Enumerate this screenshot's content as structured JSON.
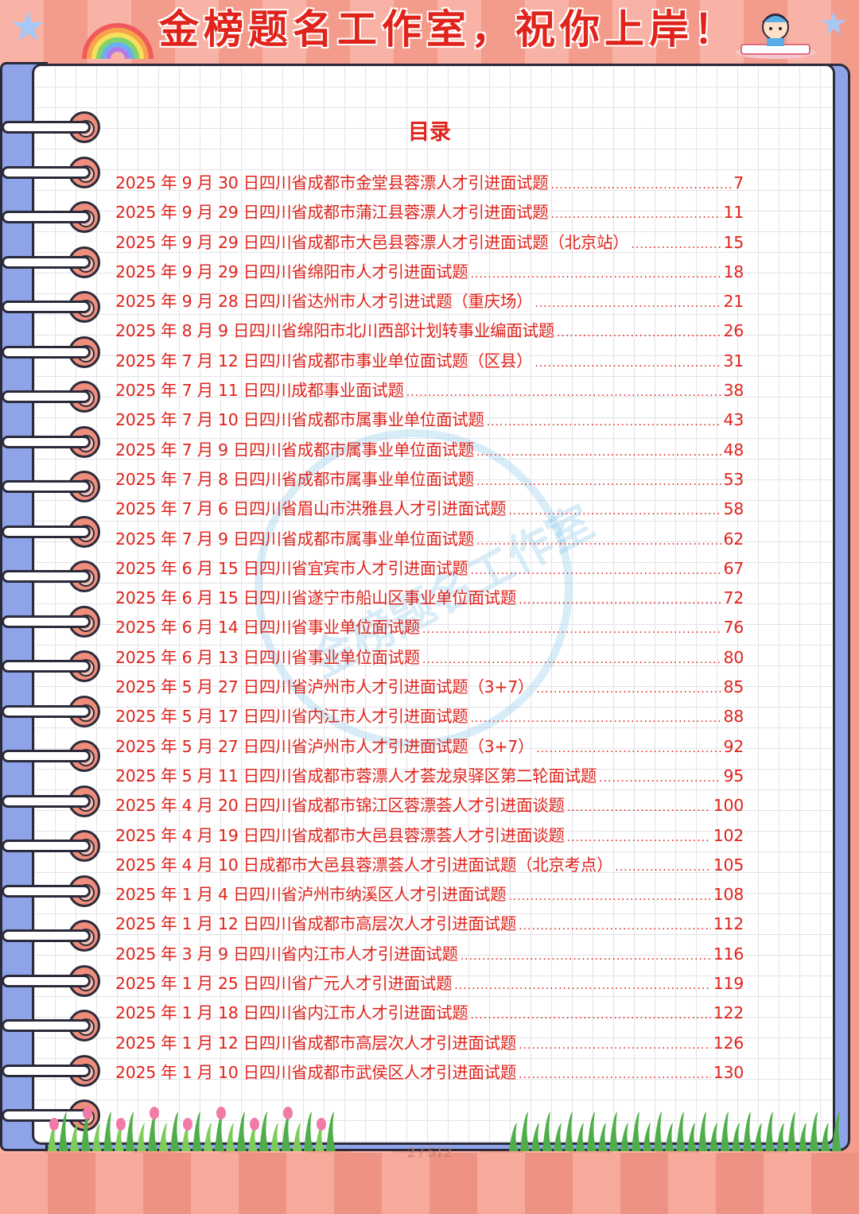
{
  "banner": {
    "title": "金榜题名工作室，祝你上岸！"
  },
  "watermark": {
    "text": "金榜题名工作室"
  },
  "toc": {
    "heading": "目录",
    "entries": [
      {
        "title": "2025 年 9 月 30 日四川省成都市金堂县蓉漂人才引进面试题",
        "page": "7"
      },
      {
        "title": "2025 年 9 月 29 日四川省成都市蒲江县蓉漂人才引进面试题",
        "page": "11"
      },
      {
        "title": "2025 年 9 月 29 日四川省成都市大邑县蓉漂人才引进面试题（北京站）",
        "page": "15"
      },
      {
        "title": "2025 年 9 月 29 日四川省绵阳市人才引进面试题",
        "page": "18"
      },
      {
        "title": "2025 年 9 月 28 日四川省达州市人才引进试题（重庆场）",
        "page": "21"
      },
      {
        "title": "2025 年 8 月 9 日四川省绵阳市北川西部计划转事业编面试题",
        "page": "26"
      },
      {
        "title": "2025 年 7 月 12 日四川省成都市事业单位面试题（区县）",
        "page": "31"
      },
      {
        "title": "2025 年 7 月 11 日四川成都事业面试题",
        "page": "38"
      },
      {
        "title": "2025 年 7 月 10 日四川省成都市属事业单位面试题",
        "page": "43"
      },
      {
        "title": "2025 年 7 月 9 日四川省成都市属事业单位面试题",
        "page": "48"
      },
      {
        "title": "2025 年 7 月 8 日四川省成都市属事业单位面试题",
        "page": "53"
      },
      {
        "title": "2025 年 7 月 6 日四川省眉山市洪雅县人才引进面试题",
        "page": "58"
      },
      {
        "title": "2025 年 7 月 9 日四川省成都市属事业单位面试题",
        "page": "62"
      },
      {
        "title": "2025 年 6 月 15 日四川省宜宾市人才引进面试题",
        "page": "67"
      },
      {
        "title": "2025 年 6 月 15 日四川省遂宁市船山区事业单位面试题",
        "page": "72"
      },
      {
        "title": "2025 年 6 月 14 日四川省事业单位面试题",
        "page": "76"
      },
      {
        "title": "2025 年 6 月 13 日四川省事业单位面试题",
        "page": "80"
      },
      {
        "title": "2025 年 5 月 27 日四川省泸州市人才引进面试题（3+7）",
        "page": "85"
      },
      {
        "title": "2025 年 5 月 17 日四川省内江市人才引进面试题",
        "page": "88"
      },
      {
        "title": "2025 年 5 月 27 日四川省泸州市人才引进面试题（3+7）",
        "page": "92"
      },
      {
        "title": "2025 年 5 月 11 日四川省成都市蓉漂人才荟龙泉驿区第二轮面试题",
        "page": "95"
      },
      {
        "title": "2025 年 4 月 20 日四川省成都市锦江区蓉漂荟人才引进面谈题",
        "page": "100"
      },
      {
        "title": "2025 年 4 月 19 日四川省成都市大邑县蓉漂荟人才引进面谈题",
        "page": "102"
      },
      {
        "title": "2025 年 4 月 10 日成都市大邑县蓉漂荟人才引进面试题（北京考点）",
        "page": "105"
      },
      {
        "title": "2025 年 1 月 4 日四川省泸州市纳溪区人才引进面试题",
        "page": "108"
      },
      {
        "title": "2025 年 1 月 12 日四川省成都市高层次人才引进面试题",
        "page": "112"
      },
      {
        "title": "2025 年 3 月 9 日四川省内江市人才引进面试题",
        "page": "116"
      },
      {
        "title": "2025 年 1 月 25 日四川省广元人才引进面试题",
        "page": "119"
      },
      {
        "title": "2025 年 1 月 18 日四川省内江市人才引进面试题",
        "page": "122"
      },
      {
        "title": "2025 年 1 月 12 日四川省成都市高层次人才引进面试题",
        "page": "126"
      },
      {
        "title": "2025 年 1 月 10 日四川省成都市武侯区人才引进面试题",
        "page": "130"
      }
    ]
  },
  "footer": {
    "page_indicator": "2 / 512"
  },
  "colors": {
    "accent": "#e0241c",
    "background": "#f6a89a",
    "notebook_cover": "#8fa4e8"
  }
}
